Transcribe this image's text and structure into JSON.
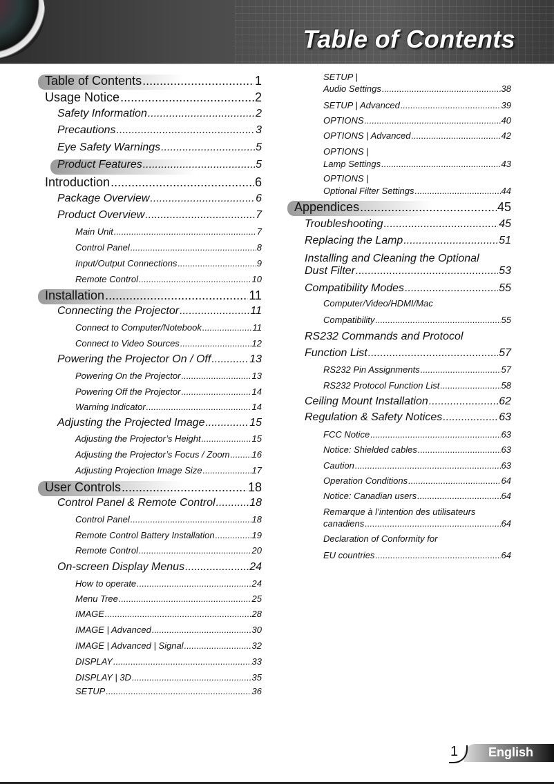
{
  "header": {
    "title": "Table of Contents"
  },
  "footer": {
    "page_number": "1",
    "language": "English"
  },
  "toc": {
    "left": [
      {
        "title": "Table of Contents",
        "page": "1",
        "level": 1,
        "highlight": true
      },
      {
        "title": "Usage Notice",
        "page": "2",
        "level": 1
      },
      {
        "title": "Safety Information",
        "page": "2",
        "level": 2
      },
      {
        "title": "Precautions",
        "page": "3",
        "level": 2
      },
      {
        "title": "Eye Safety Warnings",
        "page": "5",
        "level": 2
      },
      {
        "title": "Product Features",
        "page": "5",
        "level": 2,
        "highlight": true
      },
      {
        "title": "Introduction",
        "page": "6",
        "level": 1
      },
      {
        "title": "Package Overview",
        "page": "6",
        "level": 2
      },
      {
        "title": "Product Overview",
        "page": "7",
        "level": 2
      },
      {
        "title": "Main Unit",
        "page": "7",
        "level": 3
      },
      {
        "title": "Control Panel",
        "page": "8",
        "level": 3
      },
      {
        "title": "Input/Output Connections",
        "page": "9",
        "level": 3
      },
      {
        "title": "Remote Control",
        "page": "10",
        "level": 3
      },
      {
        "title": "Installation",
        "page": "11",
        "level": 1,
        "highlight": true
      },
      {
        "title": "Connecting the Projector",
        "page": "11",
        "level": 2
      },
      {
        "title": "Connect to Computer/Notebook",
        "page": "11",
        "level": 3
      },
      {
        "title": "Connect to Video Sources",
        "page": "12",
        "level": 3
      },
      {
        "title": "Powering the Projector On / Off",
        "page": "13",
        "level": 2
      },
      {
        "title": "Powering On the Projector",
        "page": "13",
        "level": 3
      },
      {
        "title": "Powering Off the Projector",
        "page": "14",
        "level": 3
      },
      {
        "title": "Warning Indicator",
        "page": "14",
        "level": 3
      },
      {
        "title": "Adjusting the Projected Image",
        "page": "15",
        "level": 2
      },
      {
        "title": "Adjusting the Projector’s Height",
        "page": "15",
        "level": 3
      },
      {
        "title": "Adjusting the Projector’s Focus / Zoom",
        "page": "16",
        "level": 3
      },
      {
        "title": "Adjusting Projection Image Size",
        "page": "17",
        "level": 3
      },
      {
        "title": "User Controls",
        "page": "18",
        "level": 1,
        "highlight": true
      },
      {
        "title": "Control Panel & Remote Control",
        "page": "18",
        "level": 2
      },
      {
        "title": "Control Panel",
        "page": "18",
        "level": 3
      },
      {
        "title": "Remote Control Battery Installation",
        "page": "19",
        "level": 3
      },
      {
        "title": "Remote Control",
        "page": "20",
        "level": 3
      },
      {
        "title": "On-screen Display Menus",
        "page": "24",
        "level": 2
      },
      {
        "title": "How to operate",
        "page": "24",
        "level": 3
      },
      {
        "title": "Menu Tree",
        "page": "25",
        "level": 3
      },
      {
        "title": "IMAGE",
        "page": "28",
        "level": 3
      },
      {
        "title": "IMAGE | Advanced",
        "page": "30",
        "level": 3
      },
      {
        "title": "IMAGE | Advanced | Signal",
        "page": "32",
        "level": 3
      },
      {
        "title": "DISPLAY",
        "page": "33",
        "level": 3
      },
      {
        "title": "DISPLAY | 3D",
        "page": "35",
        "level": 3
      },
      {
        "title": "SETUP",
        "page": "36",
        "level": 3
      }
    ],
    "right": [
      {
        "pre": "SETUP |",
        "title": "Audio Settings",
        "page": "38",
        "level": 3
      },
      {
        "title": "SETUP | Advanced",
        "page": "39",
        "level": 3
      },
      {
        "title": "OPTIONS",
        "page": "40",
        "level": 3
      },
      {
        "title": "OPTIONS | Advanced",
        "page": "42",
        "level": 3
      },
      {
        "pre": "OPTIONS |",
        "title": "Lamp Settings",
        "page": "43",
        "level": 3
      },
      {
        "pre": "OPTIONS |",
        "title": "Optional Filter Settings",
        "page": "44",
        "level": 3
      },
      {
        "title": "Appendices",
        "page": "45",
        "level": 1,
        "highlight": true
      },
      {
        "title": "Troubleshooting",
        "page": "45",
        "level": 2
      },
      {
        "title": "Replacing the Lamp",
        "page": "51",
        "level": 2
      },
      {
        "pre": "Installing and Cleaning the Optional",
        "title": "Dust Filter",
        "page": "53",
        "level": 2
      },
      {
        "title": "Compatibility Modes",
        "page": "55",
        "level": 2
      },
      {
        "pre": "Computer/Video/HDMI/Mac",
        "title": "Compatibility",
        "page": "55",
        "level": 3
      },
      {
        "pre": "RS232 Commands and Protocol",
        "title": "Function List",
        "page": "57",
        "level": 2
      },
      {
        "title": "RS232 Pin Assignments",
        "page": "57",
        "level": 3
      },
      {
        "title": "RS232 Protocol Function List",
        "page": "58",
        "level": 3
      },
      {
        "title": "Ceiling Mount Installation",
        "page": "62",
        "level": 2
      },
      {
        "title": "Regulation & Safety Notices",
        "page": "63",
        "level": 2
      },
      {
        "title": "FCC Notice",
        "page": "63",
        "level": 3
      },
      {
        "title": "Notice: Shielded cables",
        "page": "63",
        "level": 3
      },
      {
        "title": "Caution",
        "page": "63",
        "level": 3
      },
      {
        "title": "Operation Conditions",
        "page": "64",
        "level": 3
      },
      {
        "title": "Notice: Canadian users",
        "page": "64",
        "level": 3
      },
      {
        "pre": "Remarque à l’intention des utilisateurs",
        "title": "canadiens",
        "page": "64",
        "level": 3
      },
      {
        "pre": "Declaration of Conformity for",
        "title": "EU countries",
        "page": "64",
        "level": 3
      }
    ]
  }
}
